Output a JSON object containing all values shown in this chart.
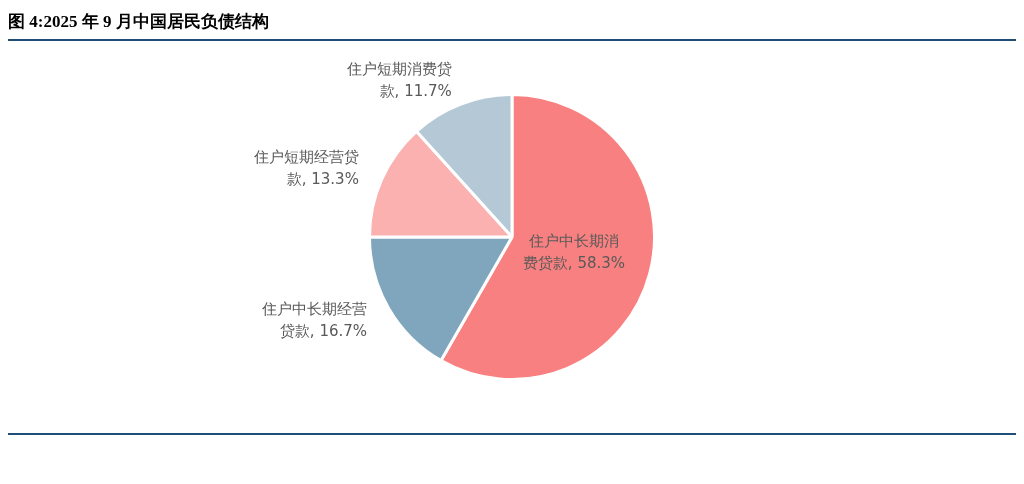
{
  "chart_data": {
    "type": "pie",
    "title": "图 4:2025 年 9 月中国居民负债结构",
    "categories": [
      "住户中长期消费贷款",
      "住户中长期经营贷款",
      "住户短期经营贷款",
      "住户短期消费贷款"
    ],
    "values": [
      58.3,
      16.7,
      13.3,
      11.7
    ],
    "value_labels": [
      "58.3%",
      "16.7%",
      "13.3%",
      "11.7%"
    ],
    "colors": [
      "#f88080",
      "#7fa6bd",
      "#fbb1b0",
      "#b4c8d6"
    ],
    "legend": false
  }
}
